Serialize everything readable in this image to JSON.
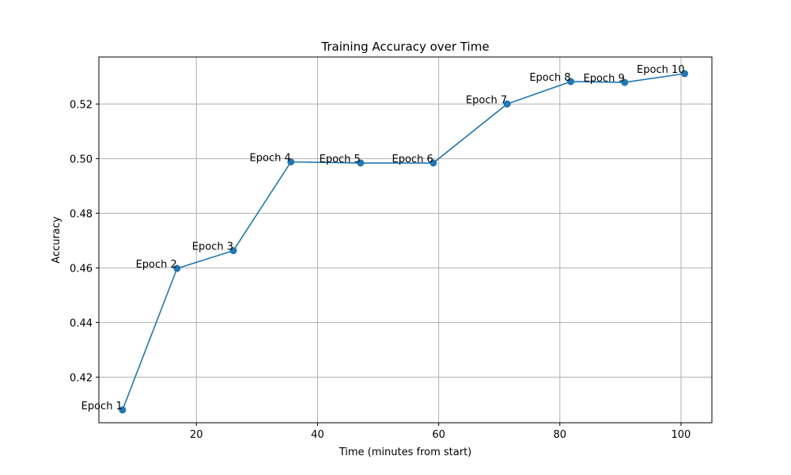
{
  "chart_data": {
    "type": "line",
    "title": "Training Accuracy over Time",
    "xlabel": "Time (minutes from start)",
    "ylabel": "Accuracy",
    "xlim": [
      3.9,
      105.1
    ],
    "ylim": [
      0.4033,
      0.5372
    ],
    "xticks": [
      20,
      40,
      60,
      80,
      100
    ],
    "yticks": [
      0.42,
      0.44,
      0.46,
      0.48,
      0.5,
      0.52
    ],
    "ytick_labels": [
      "0.42",
      "0.44",
      "0.46",
      "0.48",
      "0.50",
      "0.52"
    ],
    "grid": true,
    "line_color": "#1f77b4",
    "marker": "circle",
    "points": [
      {
        "label": "Epoch 1",
        "x": 7.8,
        "y": 0.408
      },
      {
        "label": "Epoch 2",
        "x": 16.8,
        "y": 0.4598
      },
      {
        "label": "Epoch 3",
        "x": 26.1,
        "y": 0.4663
      },
      {
        "label": "Epoch 4",
        "x": 35.6,
        "y": 0.4988
      },
      {
        "label": "Epoch 5",
        "x": 47.1,
        "y": 0.4984
      },
      {
        "label": "Epoch 6",
        "x": 59.1,
        "y": 0.4984
      },
      {
        "label": "Epoch 7",
        "x": 71.3,
        "y": 0.52
      },
      {
        "label": "Epoch 8",
        "x": 81.8,
        "y": 0.5282
      },
      {
        "label": "Epoch 9",
        "x": 90.7,
        "y": 0.5279
      },
      {
        "label": "Epoch 10",
        "x": 100.6,
        "y": 0.5311
      }
    ]
  }
}
